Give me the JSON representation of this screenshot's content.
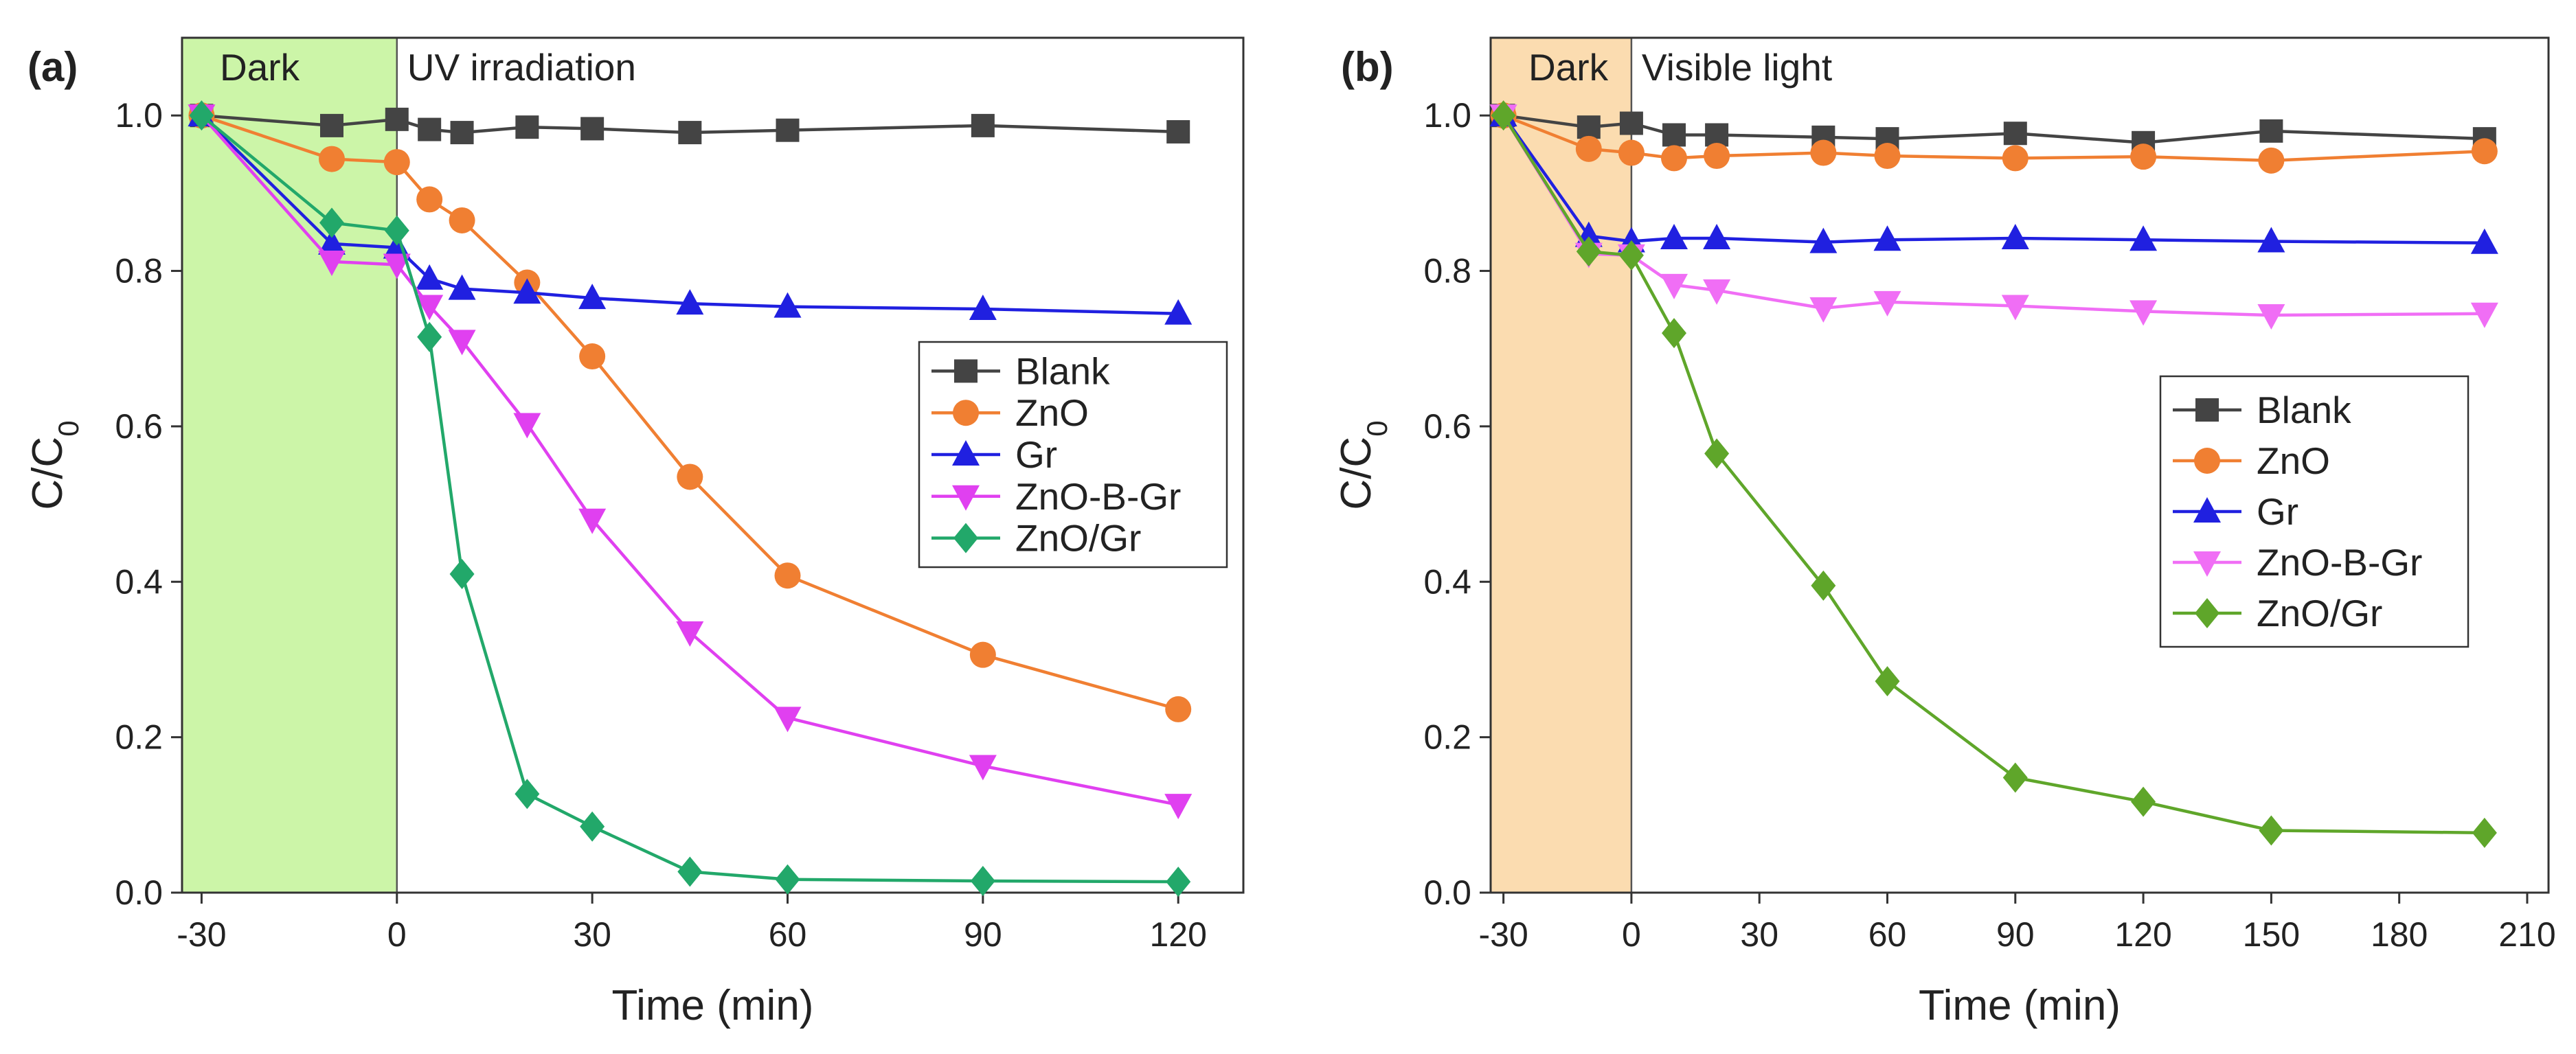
{
  "chart_data": [
    {
      "type": "line",
      "panel_label": "(a)",
      "xlabel": "Time (min)",
      "ylabel": "C/C0",
      "xlim": [
        -33,
        130
      ],
      "ylim": [
        0,
        1.1
      ],
      "xticks": [
        -30,
        0,
        30,
        60,
        90,
        120
      ],
      "yticks": [
        0.0,
        0.2,
        0.4,
        0.6,
        0.8,
        1.0
      ],
      "regions": [
        {
          "label": "Dark",
          "x_start": -33,
          "x_end": 0,
          "color": "#ccf5a8"
        },
        {
          "label": "UV irradiation",
          "x_start": 0,
          "x_end": 130,
          "color": "#ffffff"
        }
      ],
      "legend_position": "center-right",
      "series": [
        {
          "name": "Blank",
          "color": "#444444",
          "marker": "square",
          "x": [
            -30,
            -10,
            0,
            5,
            10,
            20,
            30,
            45,
            60,
            90,
            120
          ],
          "y": [
            1.0,
            0.987,
            0.995,
            0.982,
            0.978,
            0.985,
            0.983,
            0.978,
            0.981,
            0.987,
            0.979
          ]
        },
        {
          "name": "ZnO",
          "color": "#f07f32",
          "marker": "circle",
          "x": [
            -30,
            -10,
            0,
            5,
            10,
            20,
            30,
            45,
            60,
            90,
            120
          ],
          "y": [
            1.0,
            0.944,
            0.94,
            0.892,
            0.865,
            0.785,
            0.69,
            0.535,
            0.408,
            0.306,
            0.236
          ]
        },
        {
          "name": "Gr",
          "color": "#2020e0",
          "marker": "triangle-up",
          "x": [
            -30,
            -10,
            0,
            5,
            10,
            20,
            30,
            45,
            60,
            90,
            120
          ],
          "y": [
            1.0,
            0.835,
            0.83,
            0.79,
            0.777,
            0.772,
            0.765,
            0.758,
            0.754,
            0.751,
            0.745
          ]
        },
        {
          "name": "ZnO-B-Gr",
          "color": "#e040f0",
          "marker": "triangle-down",
          "x": [
            -30,
            -10,
            0,
            5,
            10,
            20,
            30,
            45,
            60,
            90,
            120
          ],
          "y": [
            1.0,
            0.812,
            0.808,
            0.755,
            0.71,
            0.603,
            0.48,
            0.335,
            0.225,
            0.163,
            0.113
          ]
        },
        {
          "name": "ZnO/Gr",
          "color": "#22a86a",
          "marker": "diamond",
          "x": [
            -30,
            -10,
            0,
            5,
            10,
            20,
            30,
            45,
            60,
            90,
            120
          ],
          "y": [
            1.0,
            0.862,
            0.852,
            0.715,
            0.41,
            0.127,
            0.085,
            0.027,
            0.017,
            0.015,
            0.014
          ]
        }
      ]
    },
    {
      "type": "line",
      "panel_label": "(b)",
      "xlabel": "Time (min)",
      "ylabel": "C/C0",
      "xlim": [
        -33,
        215
      ],
      "ylim": [
        0,
        1.1
      ],
      "xticks": [
        -30,
        0,
        30,
        60,
        90,
        120,
        150,
        180,
        210
      ],
      "yticks": [
        0.0,
        0.2,
        0.4,
        0.6,
        0.8,
        1.0
      ],
      "regions": [
        {
          "label": "Dark",
          "x_start": -33,
          "x_end": 0,
          "color": "#fbdcb0"
        },
        {
          "label": "Visible light",
          "x_start": 0,
          "x_end": 215,
          "color": "#ffffff"
        }
      ],
      "legend_position": "center-right",
      "series": [
        {
          "name": "Blank",
          "color": "#444444",
          "marker": "square",
          "x": [
            -30,
            -10,
            0,
            10,
            20,
            45,
            60,
            90,
            120,
            150,
            200
          ],
          "y": [
            1.0,
            0.985,
            0.99,
            0.975,
            0.975,
            0.972,
            0.97,
            0.977,
            0.965,
            0.98,
            0.97
          ]
        },
        {
          "name": "ZnO",
          "color": "#f07f32",
          "marker": "circle",
          "x": [
            -30,
            -10,
            0,
            10,
            20,
            45,
            60,
            90,
            120,
            150,
            200
          ],
          "y": [
            1.0,
            0.957,
            0.952,
            0.945,
            0.948,
            0.952,
            0.948,
            0.945,
            0.947,
            0.942,
            0.954
          ]
        },
        {
          "name": "Gr",
          "color": "#2020e0",
          "marker": "triangle-up",
          "x": [
            -30,
            -10,
            0,
            10,
            20,
            45,
            60,
            90,
            120,
            150,
            200
          ],
          "y": [
            1.0,
            0.845,
            0.838,
            0.842,
            0.842,
            0.837,
            0.84,
            0.842,
            0.84,
            0.838,
            0.836
          ]
        },
        {
          "name": "ZnO-B-Gr",
          "color": "#f06ef5",
          "marker": "triangle-down",
          "x": [
            -30,
            -10,
            0,
            10,
            20,
            45,
            60,
            90,
            120,
            150,
            200
          ],
          "y": [
            1.0,
            0.822,
            0.82,
            0.782,
            0.775,
            0.752,
            0.76,
            0.755,
            0.748,
            0.743,
            0.745
          ]
        },
        {
          "name": "ZnO/Gr",
          "color": "#5fa62a",
          "marker": "diamond",
          "x": [
            -30,
            -10,
            0,
            10,
            20,
            45,
            60,
            90,
            120,
            150,
            200
          ],
          "y": [
            1.0,
            0.825,
            0.82,
            0.72,
            0.565,
            0.395,
            0.272,
            0.148,
            0.117,
            0.08,
            0.077
          ]
        }
      ]
    }
  ]
}
